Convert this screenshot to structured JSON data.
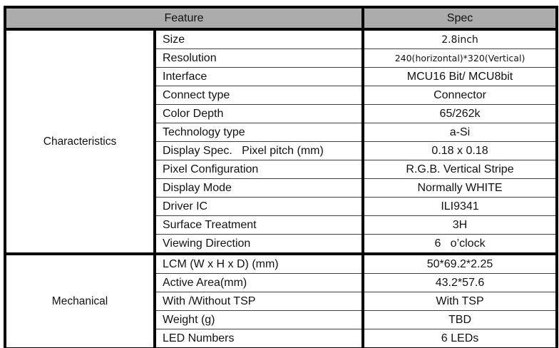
{
  "colors": {
    "header_bg": "#ACACAC",
    "border": "#000000",
    "row_line": "#3F3F3F",
    "background": "#FFFFFF"
  },
  "table": {
    "header": {
      "feature": "Feature",
      "spec": "Spec"
    },
    "sections": [
      {
        "label": "Characteristics",
        "rows": [
          {
            "feature": "Size",
            "spec": "2.8inch"
          },
          {
            "feature": "Resolution",
            "spec": "240(horizontal)*320(Vertical)"
          },
          {
            "feature": "Interface",
            "spec": "MCU16 Bit/ MCU8bit"
          },
          {
            "feature": "Connect type",
            "spec": "Connector"
          },
          {
            "feature": "Color Depth",
            "spec": "65/262k"
          },
          {
            "feature": "Technology type",
            "spec": "a-Si"
          },
          {
            "feature": "Display Spec.   Pixel pitch (mm)",
            "spec": "0.18 x 0.18"
          },
          {
            "feature": "Pixel Configuration",
            "spec": "R.G.B. Vertical Stripe"
          },
          {
            "feature": "Display Mode",
            "spec": "Normally WHITE"
          },
          {
            "feature": "Driver IC",
            "spec": "ILI9341"
          },
          {
            "feature": "Surface Treatment",
            "spec": "3H"
          },
          {
            "feature": "Viewing Direction",
            "spec": "6   o’clock"
          }
        ]
      },
      {
        "label": "Mechanical",
        "rows": [
          {
            "feature": "LCM (W x H x D) (mm)",
            "spec": "50*69.2*2.25"
          },
          {
            "feature": "Active Area(mm)",
            "spec": "43.2*57.6"
          },
          {
            "feature": "With /Without TSP",
            "spec": "With TSP"
          },
          {
            "feature": "Weight (g)",
            "spec": "TBD"
          },
          {
            "feature": "LED Numbers",
            "spec": "6 LEDs"
          }
        ]
      }
    ]
  }
}
